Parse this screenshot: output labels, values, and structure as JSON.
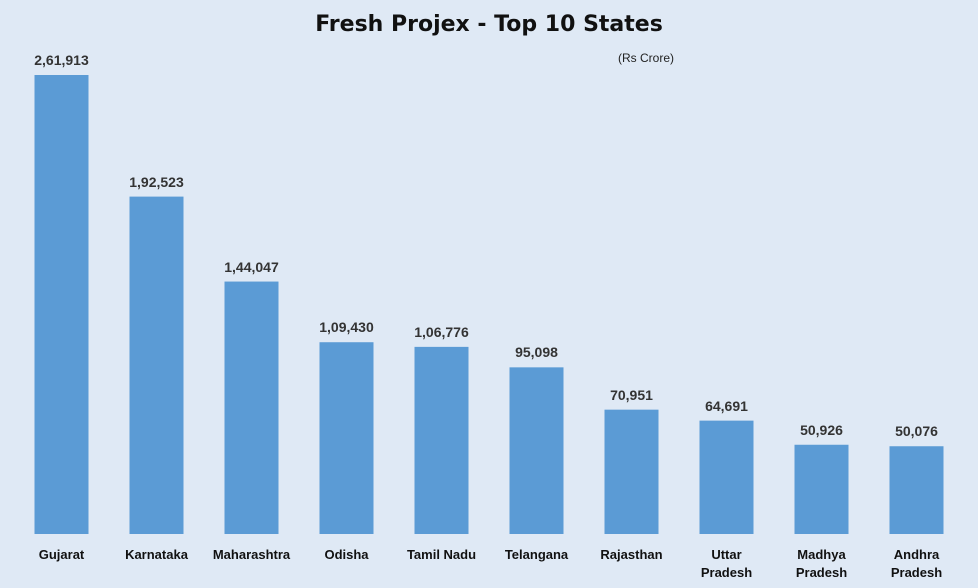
{
  "chart_data": {
    "type": "bar",
    "title": "Fresh Projex - Top 10 States",
    "subtitle": "(Rs Crore)",
    "categories": [
      "Gujarat",
      "Karnataka",
      "Maharashtra",
      "Odisha",
      "Tamil Nadu",
      "Telangana",
      "Rajasthan",
      "Uttar Pradesh",
      "Madhya Pradesh",
      "Andhra Pradesh"
    ],
    "values": [
      261913,
      192523,
      144047,
      109430,
      106776,
      95098,
      70951,
      64691,
      50926,
      50076
    ],
    "value_labels": [
      "2,61,913",
      "1,92,523",
      "1,44,047",
      "1,09,430",
      "1,06,776",
      "95,098",
      "70,951",
      "64,691",
      "50,926",
      "50,076"
    ],
    "color": "#5b9bd5"
  }
}
